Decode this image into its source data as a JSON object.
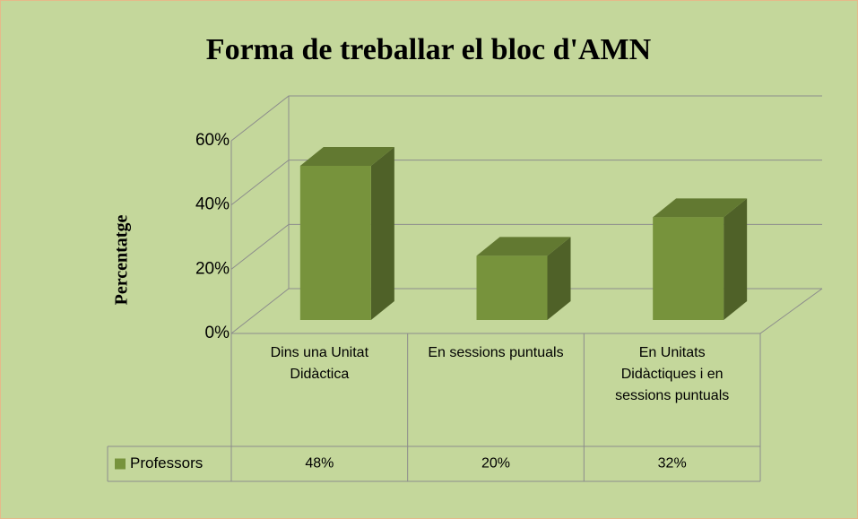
{
  "chart_data": {
    "type": "bar3d",
    "title": "Forma de treballar el bloc d'AMN",
    "ylabel": "Percentatge",
    "categories": [
      "Dins una Unitat Didàctica",
      "En sessions puntuals",
      "En Unitats Didàctiques i en sessions puntuals"
    ],
    "series": [
      {
        "name": "Professors",
        "color": "#77933c",
        "values": [
          48,
          20,
          32
        ],
        "value_labels": [
          "48%",
          "20%",
          "32%"
        ]
      }
    ],
    "ylim": [
      0,
      60
    ],
    "yticks": [
      {
        "value": 0,
        "label": "0%"
      },
      {
        "value": 20,
        "label": "20%"
      },
      {
        "value": 40,
        "label": "40%"
      },
      {
        "value": 60,
        "label": "60%"
      }
    ],
    "grid": true,
    "data_table": true
  }
}
